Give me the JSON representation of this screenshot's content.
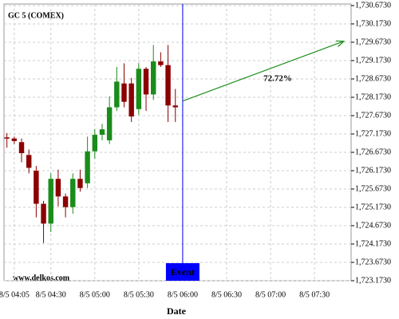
{
  "chart_data": {
    "type": "candlestick",
    "title": "GC 5 (COMEX)",
    "watermark": "www.delkos.com",
    "x_label": "Date",
    "x": [
      "8/5 04:00",
      "8/5 04:05",
      "8/5 04:10",
      "8/5 04:15",
      "8/5 04:20",
      "8/5 04:25",
      "8/5 04:30",
      "8/5 04:35",
      "8/5 04:40",
      "8/5 04:45",
      "8/5 04:50",
      "8/5 04:55",
      "8/5 05:00",
      "8/5 05:05",
      "8/5 05:10",
      "8/5 05:15",
      "8/5 05:20",
      "8/5 05:25",
      "8/5 05:30",
      "8/5 05:35",
      "8/5 05:40",
      "8/5 05:45",
      "8/5 05:50",
      "8/5 05:55"
    ],
    "open": [
      1727.08,
      1727.05,
      1726.95,
      1726.6,
      1726.17,
      1725.27,
      1724.73,
      1725.95,
      1725.47,
      1725.18,
      1725.95,
      1725.83,
      1726.7,
      1727.15,
      1727.0,
      1727.9,
      1728.55,
      1728.55,
      1727.85,
      1728.95,
      1728.25,
      1729.15,
      1729.05,
      1727.95
    ],
    "high": [
      1727.2,
      1727.1,
      1727.05,
      1726.75,
      1726.3,
      1725.35,
      1726.1,
      1726.2,
      1725.55,
      1726.1,
      1726.2,
      1727.1,
      1727.3,
      1727.45,
      1728.2,
      1729.0,
      1729.1,
      1728.7,
      1729.1,
      1729.0,
      1729.6,
      1729.4,
      1729.6,
      1728.4
    ],
    "low": [
      1726.8,
      1726.9,
      1726.4,
      1726.1,
      1724.9,
      1724.2,
      1724.5,
      1725.2,
      1724.9,
      1725.0,
      1725.6,
      1725.7,
      1726.5,
      1727.0,
      1726.9,
      1727.8,
      1727.9,
      1727.5,
      1727.7,
      1727.8,
      1728.1,
      1729.0,
      1727.5,
      1727.5
    ],
    "close": [
      1727.06,
      1726.98,
      1726.65,
      1726.25,
      1725.27,
      1724.73,
      1725.95,
      1725.47,
      1725.18,
      1725.95,
      1725.7,
      1726.7,
      1727.15,
      1727.3,
      1727.9,
      1728.6,
      1728.05,
      1727.65,
      1728.95,
      1728.25,
      1729.15,
      1729.05,
      1727.95,
      1727.9
    ],
    "up_color": "#1a8c1a",
    "down_color": "#8b0000",
    "xlim": [
      "8/5 03:58",
      "8/5 07:55"
    ],
    "xticks": [
      "8/5 04:05",
      "8/5 04:30",
      "8/5 05:00",
      "8/5 05:30",
      "8/5 06:00",
      "8/5 06:30",
      "8/5 07:00",
      "8/5 07:30"
    ],
    "ylim": [
      1723.173,
      1730.716
    ],
    "yticks": [
      {
        "value": 1723.173,
        "label": "1,723.1730"
      },
      {
        "value": 1723.673,
        "label": "1,723.6730"
      },
      {
        "value": 1724.173,
        "label": "1,724.1730"
      },
      {
        "value": 1724.673,
        "label": "1,724.6730"
      },
      {
        "value": 1725.173,
        "label": "1,725.1730"
      },
      {
        "value": 1725.673,
        "label": "1,725.6730"
      },
      {
        "value": 1726.173,
        "label": "1,726.1730"
      },
      {
        "value": 1726.673,
        "label": "1,726.6730"
      },
      {
        "value": 1727.173,
        "label": "1,727.1730"
      },
      {
        "value": 1727.673,
        "label": "1,727.6730"
      },
      {
        "value": 1728.173,
        "label": "1,728.1730"
      },
      {
        "value": 1728.673,
        "label": "1,728.6730"
      },
      {
        "value": 1729.173,
        "label": "1,729.1730"
      },
      {
        "value": 1729.673,
        "label": "1,729.6730"
      },
      {
        "value": 1730.173,
        "label": "1,730.1730"
      },
      {
        "value": 1730.673,
        "label": "1,730.6730"
      }
    ],
    "grid": true,
    "event": {
      "label": "Event",
      "x": "8/5 06:00",
      "color": "#0000ff"
    },
    "forecast": {
      "label": "72.72%",
      "color": "#1a8c1a",
      "x": [
        "8/5 06:00",
        "8/5 07:50"
      ],
      "y": [
        1728.07,
        1729.7
      ]
    }
  }
}
